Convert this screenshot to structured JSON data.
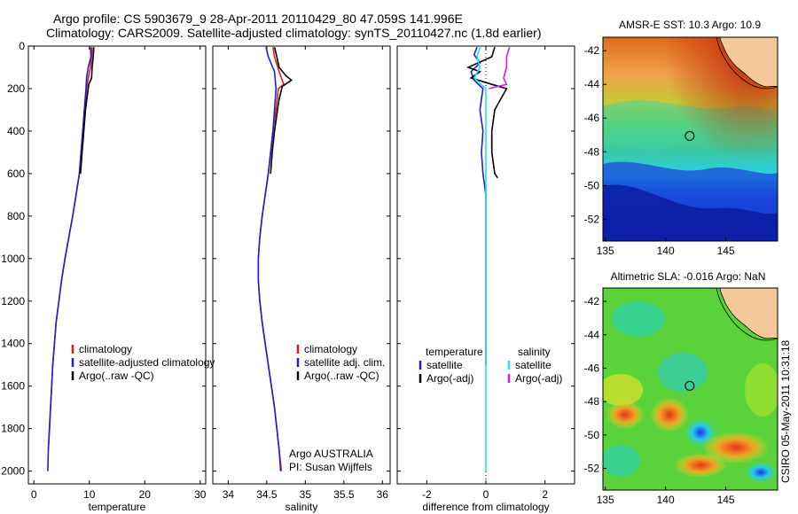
{
  "header": {
    "line1": "Argo profile: CS 5903679_9 28-Apr-2011 20110429_80 47.059S 141.996E",
    "line2": "Climatology: CARS2009. Satellite-adjusted climatology: synTS_20110427.nc (1.8d earlier)"
  },
  "timestamp": "CSIRO 05-May-2011 10:31:18",
  "colors": {
    "climatology": "#e41a1c",
    "satellite": "#1f1fd6",
    "argo": "#000000",
    "salinity_sat": "#19e6e6",
    "salinity_argo": "#e619e6"
  },
  "chart_data": [
    {
      "type": "line",
      "id": "temperature",
      "xlabel": "temperature",
      "xlim": [
        -1,
        31
      ],
      "ylim": [
        0,
        2060
      ],
      "xticks": [
        0,
        10,
        20,
        30
      ],
      "yticks": [
        0,
        200,
        400,
        600,
        800,
        1000,
        1200,
        1400,
        1600,
        1800,
        2000
      ],
      "legend": [
        "climatology",
        "satellite-adjusted climatology",
        "Argo(..raw -QC)"
      ],
      "series": [
        {
          "name": "climatology",
          "color": "#e41a1c",
          "points": [
            [
              10.5,
              5
            ],
            [
              10.4,
              50
            ],
            [
              10.2,
              100
            ],
            [
              9.8,
              150
            ],
            [
              9.5,
              200
            ],
            [
              9.2,
              300
            ],
            [
              8.8,
              400
            ],
            [
              8.5,
              500
            ],
            [
              8.2,
              600
            ],
            [
              7.6,
              700
            ],
            [
              7.0,
              800
            ],
            [
              6.3,
              900
            ],
            [
              5.6,
              1000
            ],
            [
              5.0,
              1100
            ],
            [
              4.5,
              1200
            ],
            [
              4.0,
              1300
            ],
            [
              3.7,
              1400
            ],
            [
              3.4,
              1500
            ],
            [
              3.2,
              1600
            ],
            [
              3.0,
              1700
            ],
            [
              2.8,
              1800
            ],
            [
              2.6,
              1900
            ]
          ]
        },
        {
          "name": "satellite",
          "color": "#1f1fd6",
          "points": [
            [
              10.2,
              5
            ],
            [
              10.3,
              50
            ],
            [
              9.8,
              100
            ],
            [
              9.5,
              150
            ],
            [
              9.4,
              200
            ],
            [
              9.1,
              300
            ],
            [
              8.8,
              400
            ],
            [
              8.5,
              500
            ],
            [
              8.2,
              600
            ],
            [
              7.6,
              700
            ],
            [
              7.0,
              800
            ],
            [
              6.3,
              900
            ],
            [
              5.6,
              1000
            ],
            [
              5.0,
              1100
            ],
            [
              4.5,
              1200
            ],
            [
              4.0,
              1300
            ],
            [
              3.7,
              1400
            ],
            [
              3.4,
              1500
            ],
            [
              3.2,
              1600
            ],
            [
              3.0,
              1700
            ],
            [
              2.8,
              1800
            ],
            [
              2.6,
              1900
            ],
            [
              2.5,
              2000
            ]
          ]
        },
        {
          "name": "argo",
          "color": "#000000",
          "points": [
            [
              10.8,
              5
            ],
            [
              10.7,
              50
            ],
            [
              10.5,
              100
            ],
            [
              10.4,
              150
            ],
            [
              9.9,
              180
            ],
            [
              9.8,
              200
            ],
            [
              9.3,
              300
            ],
            [
              9.0,
              400
            ],
            [
              8.7,
              500
            ],
            [
              8.4,
              600
            ]
          ]
        }
      ]
    },
    {
      "type": "line",
      "id": "salinity",
      "xlabel": "salinity",
      "xlim": [
        33.8,
        36.1
      ],
      "ylim": [
        0,
        2060
      ],
      "xticks": [
        34,
        34.5,
        35,
        35.5,
        36
      ],
      "yticks": [
        0,
        200,
        400,
        600,
        800,
        1000,
        1200,
        1400,
        1600,
        1800,
        2000
      ],
      "legend": [
        "climatology",
        "satellite adj. clim.",
        "Argo(..raw -QC)"
      ],
      "annotation": [
        "Argo AUSTRALIA",
        "PI: Susan Wijffels"
      ],
      "series": [
        {
          "name": "climatology",
          "color": "#e41a1c",
          "points": [
            [
              34.58,
              5
            ],
            [
              34.6,
              50
            ],
            [
              34.66,
              120
            ],
            [
              34.72,
              180
            ],
            [
              34.65,
              200
            ],
            [
              34.62,
              300
            ],
            [
              34.58,
              400
            ],
            [
              34.55,
              500
            ],
            [
              34.52,
              600
            ],
            [
              34.48,
              700
            ],
            [
              34.44,
              800
            ],
            [
              34.41,
              900
            ],
            [
              34.39,
              1000
            ],
            [
              34.39,
              1100
            ],
            [
              34.41,
              1200
            ],
            [
              34.44,
              1300
            ],
            [
              34.48,
              1400
            ],
            [
              34.52,
              1500
            ],
            [
              34.56,
              1600
            ],
            [
              34.6,
              1700
            ],
            [
              34.63,
              1800
            ],
            [
              34.66,
              1900
            ],
            [
              34.69,
              2000
            ]
          ]
        },
        {
          "name": "satellite",
          "color": "#1f1fd6",
          "points": [
            [
              34.49,
              5
            ],
            [
              34.52,
              50
            ],
            [
              34.6,
              120
            ],
            [
              34.62,
              200
            ],
            [
              34.6,
              300
            ],
            [
              34.58,
              400
            ],
            [
              34.55,
              500
            ],
            [
              34.52,
              600
            ],
            [
              34.48,
              700
            ],
            [
              34.44,
              800
            ],
            [
              34.41,
              900
            ],
            [
              34.39,
              1000
            ],
            [
              34.39,
              1100
            ],
            [
              34.41,
              1200
            ],
            [
              34.44,
              1300
            ],
            [
              34.48,
              1400
            ],
            [
              34.52,
              1500
            ],
            [
              34.56,
              1600
            ],
            [
              34.6,
              1700
            ],
            [
              34.63,
              1800
            ],
            [
              34.66,
              1900
            ],
            [
              34.68,
              2000
            ]
          ]
        },
        {
          "name": "argo",
          "color": "#000000",
          "points": [
            [
              34.6,
              5
            ],
            [
              34.63,
              50
            ],
            [
              34.66,
              100
            ],
            [
              34.75,
              140
            ],
            [
              34.82,
              160
            ],
            [
              34.7,
              190
            ],
            [
              34.66,
              250
            ],
            [
              34.64,
              300
            ],
            [
              34.6,
              400
            ],
            [
              34.57,
              500
            ],
            [
              34.55,
              600
            ]
          ]
        }
      ]
    },
    {
      "type": "line",
      "id": "difference",
      "xlabel": "difference from climatology",
      "xlim": [
        -3,
        3
      ],
      "ylim": [
        0,
        2060
      ],
      "xticks": [
        -2,
        0,
        2
      ],
      "yticks": [
        0,
        200,
        400,
        600,
        800,
        1000,
        1200,
        1400,
        1600,
        1800,
        2000
      ],
      "legend_left_title": "temperature",
      "legend_left": [
        "satellite",
        "Argo(-adj)"
      ],
      "legend_right_title": "salinity",
      "legend_right": [
        "satellite",
        "Argo(-adj)"
      ],
      "series": [
        {
          "name": "temp-satellite",
          "color": "#1f1fd6",
          "points": [
            [
              -0.3,
              5
            ],
            [
              -0.4,
              40
            ],
            [
              -0.2,
              80
            ],
            [
              -0.5,
              120
            ],
            [
              -0.4,
              160
            ],
            [
              -0.1,
              200
            ],
            [
              -0.2,
              300
            ],
            [
              -0.1,
              400
            ],
            [
              -0.15,
              500
            ],
            [
              -0.1,
              600
            ],
            [
              0,
              700
            ],
            [
              0,
              800
            ],
            [
              0,
              1000
            ],
            [
              0,
              1500
            ]
          ]
        },
        {
          "name": "temp-argo",
          "color": "#000000",
          "points": [
            [
              0.3,
              5
            ],
            [
              0.2,
              50
            ],
            [
              -0.6,
              100
            ],
            [
              -0.2,
              120
            ],
            [
              -0.5,
              150
            ],
            [
              0.2,
              180
            ],
            [
              0.7,
              200
            ],
            [
              0.3,
              300
            ],
            [
              0.2,
              400
            ],
            [
              0.2,
              500
            ],
            [
              0.3,
              600
            ],
            [
              0.4,
              620
            ]
          ]
        },
        {
          "name": "sal-satellite",
          "color": "#19e6e6",
          "points": [
            [
              -0.2,
              5
            ],
            [
              -0.3,
              50
            ],
            [
              -0.2,
              100
            ],
            [
              -0.4,
              150
            ],
            [
              0,
              200
            ],
            [
              0,
              300
            ],
            [
              0,
              500
            ],
            [
              0,
              1000
            ],
            [
              0,
              1500
            ],
            [
              0,
              2000
            ]
          ]
        },
        {
          "name": "sal-argo",
          "color": "#e619e6",
          "points": [
            [
              0.8,
              5
            ],
            [
              0.7,
              50
            ],
            [
              0.7,
              100
            ],
            [
              0.6,
              150
            ],
            [
              0.7,
              180
            ],
            [
              0.1,
              200
            ]
          ]
        }
      ]
    },
    {
      "type": "heatmap",
      "id": "sst-map",
      "title": "AMSR-E SST: 10.3 Argo: 10.9",
      "xlim": [
        134.8,
        149.3
      ],
      "ylim": [
        -53.3,
        -41.2
      ],
      "xticks": [
        135,
        140,
        145
      ],
      "yticks": [
        -42,
        -44,
        -46,
        -48,
        -50,
        -52
      ],
      "marker": [
        142.0,
        -47.06
      ]
    },
    {
      "type": "heatmap",
      "id": "sla-map",
      "title": "Altimetric SLA: -0.016 Argo: NaN",
      "xlim": [
        134.8,
        149.3
      ],
      "ylim": [
        -53.3,
        -41.2
      ],
      "xticks": [
        135,
        140,
        145
      ],
      "yticks": [
        -42,
        -44,
        -46,
        -48,
        -50,
        -52
      ],
      "marker": [
        142.0,
        -47.06
      ]
    }
  ]
}
